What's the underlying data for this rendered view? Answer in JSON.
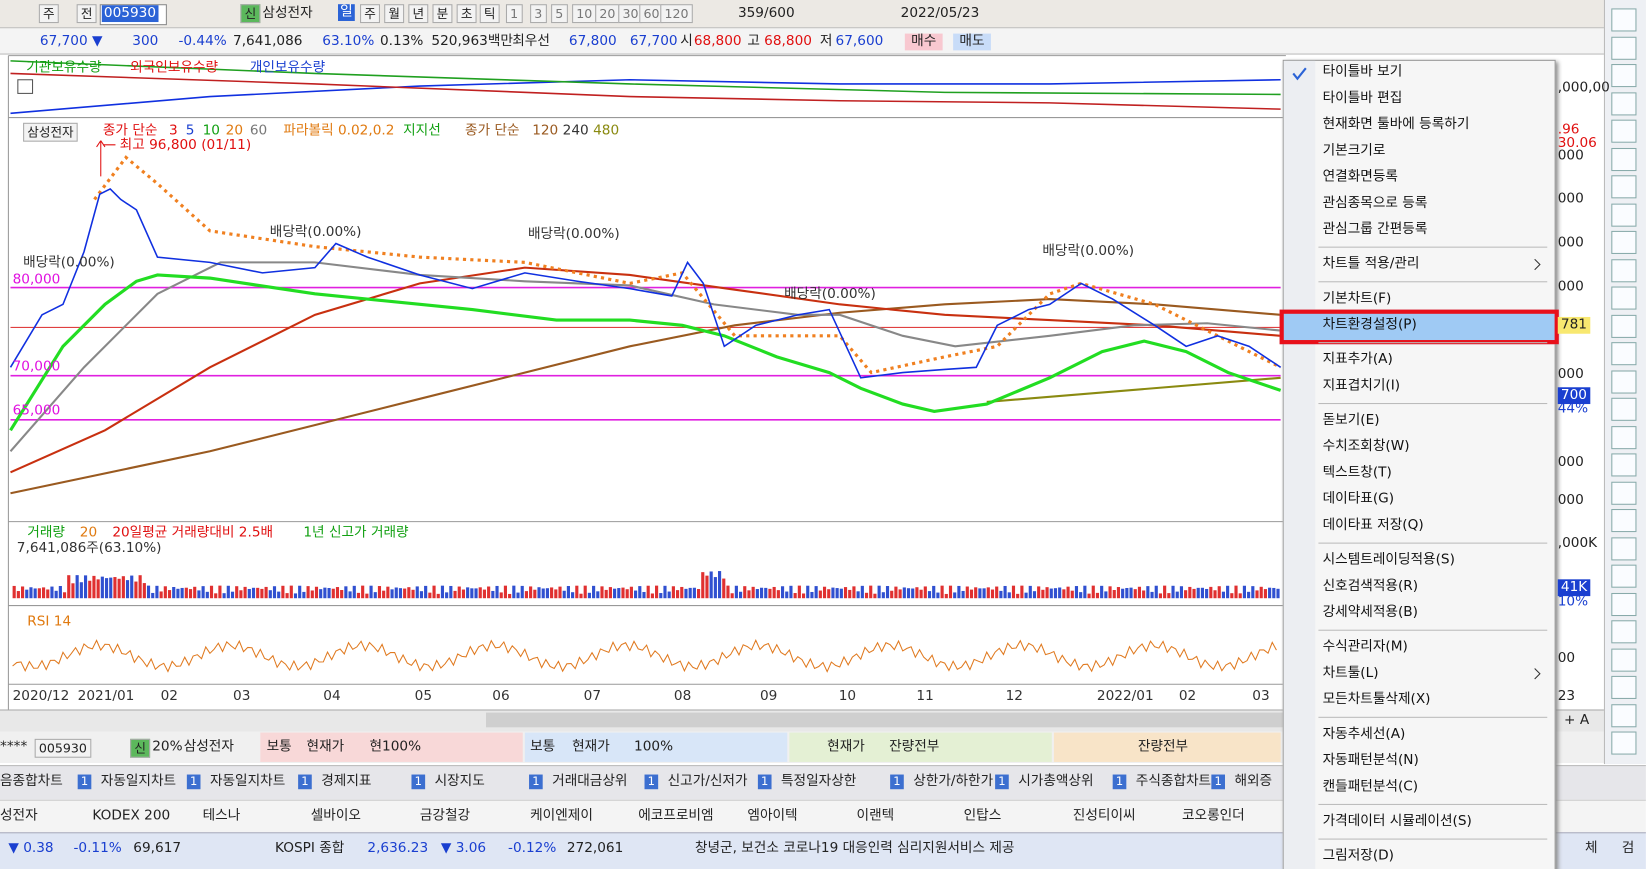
{
  "toolbar": {
    "mode1": "주",
    "mode2": "전",
    "code": "005930",
    "new": "신",
    "name": "삼성전자",
    "periods": [
      "일",
      "주",
      "월",
      "년",
      "분",
      "초",
      "틱"
    ],
    "intervals": [
      "1",
      "3",
      "5",
      "10",
      "20",
      "30",
      "60",
      "120"
    ],
    "count": "359/600",
    "date": "2022/05/23"
  },
  "quote": {
    "price": "67,700 ▼",
    "change": "300",
    "change_pct": "-0.44%",
    "volume": "7,641,086",
    "volume_ratio": "63.10%",
    "turnover": "0.13%",
    "amount": "520,963백만",
    "best_label": "최우선",
    "best_ask": "67,800",
    "best_bid": "67,700",
    "open_label": "시",
    "open": "68,800",
    "high_label": "고",
    "high": "68,800",
    "low_label": "저",
    "low": "67,600",
    "buy": "매수",
    "sell": "매도"
  },
  "investor_panel": {
    "legend": [
      "기관보유수량",
      "외국인보유수량",
      "개인보유수량"
    ]
  },
  "price_panel": {
    "legend": [
      "삼성전자",
      "종가 단순",
      "3",
      "5",
      "10",
      "20",
      "60",
      "파라볼릭 0.02,0.2",
      "지지선",
      "종가 단순",
      "120",
      "240",
      "480"
    ],
    "high_note": "최고 96,800 (01/11)",
    "dividend_notes": [
      "배당락(0.00%)",
      "배당락(0.00%)",
      "배당락(0.00%)",
      "배당락(0.00%)",
      "배당락(0.00%)"
    ],
    "levels": [
      "80,000",
      "70,000",
      "65,000"
    ]
  },
  "volume_panel": {
    "legend": [
      "거래량",
      "20",
      "20일평균 거래량대비 2.5배",
      "1년 신고가 거래량"
    ],
    "current": "7,641,086주(63.10%)"
  },
  "rsi_panel": {
    "legend": "RSI 14"
  },
  "x_axis": [
    "2020/12",
    "2021/01",
    "02",
    "03",
    "04",
    "05",
    "06",
    "07",
    "08",
    "09",
    "10",
    "11",
    "12",
    "2022/01",
    "02",
    "03"
  ],
  "right_axis": [
    ",000,00",
    ".96",
    "30.06",
    "000",
    "000",
    "000",
    "000",
    "781",
    "000",
    "700",
    "44%",
    "000",
    "000",
    ",000K",
    "41K",
    "10%",
    "00",
    "23"
  ],
  "menu": [
    [
      "타이틀바 보기",
      "타이틀바 편집",
      "현재화면 툴바에 등록하기",
      "기본크기로",
      "연결화면등록",
      "관심종목으로 등록",
      "관심그룹 간편등록"
    ],
    [
      "차트틀 적용/관리"
    ],
    [
      "기본차트(F)",
      "차트환경설정(P)"
    ],
    [
      "지표추가(A)",
      "지표겹치기(I)"
    ],
    [
      "돋보기(E)",
      "수치조회창(W)",
      "텍스트창(T)",
      "데이타표(G)",
      "데이타표 저장(Q)"
    ],
    [
      "시스템트레이딩적용(S)",
      "신호검색적용(R)",
      "강세약세적용(B)"
    ],
    [
      "수식관리자(M)",
      "차트툴(L)",
      "모든차트툴삭제(X)"
    ],
    [
      "자동추세선(A)",
      "자동패턴분석(N)",
      "캔들패턴분석(C)"
    ],
    [
      "가격데이터 시뮬레이션(S)"
    ],
    [
      "그림저장(D)"
    ]
  ],
  "order_panel": {
    "mask": "****",
    "code": "005930",
    "new": "신",
    "ratio": "20%",
    "name": "삼성전자",
    "sections": [
      [
        "보통",
        "현재가",
        "현100%"
      ],
      [
        "보통",
        "현재가",
        "100%"
      ],
      [
        "현재가",
        "잔량전부"
      ],
      [
        "잔량전부"
      ]
    ]
  },
  "tab_badge": "1",
  "tabs": [
    "음종합차트",
    "자동일지차트",
    "자동일지차트",
    "경제지표",
    "시장지도",
    "거래대금상위",
    "신고가/신저가",
    "특정일자상한",
    "상한가/하한가",
    "시가총액상위",
    "주식종합차트",
    "해외증"
  ],
  "stocks": [
    "성전자",
    "KODEX 200",
    "테스나",
    "셀바이오",
    "금강철강",
    "케이엔제이",
    "에코프로비엠",
    "엠아이텍",
    "이랜텍",
    "인탑스",
    "진성티이씨",
    "코오롱인더"
  ],
  "status": {
    "change": "▼ 0.38",
    "change_pct": "-0.11%",
    "value": "69,617",
    "index_name": "KOSPI 종합",
    "index_value": "2,636.23",
    "index_change": "▼ 3.06",
    "index_pct": "-0.12%",
    "index_volume": "272,061",
    "news": "창녕군, 보건소 코로나19 대응인력 심리지원서비스 제공"
  },
  "corner": {
    "zoom": "+ A",
    "right1": "체",
    "right2": "검"
  }
}
